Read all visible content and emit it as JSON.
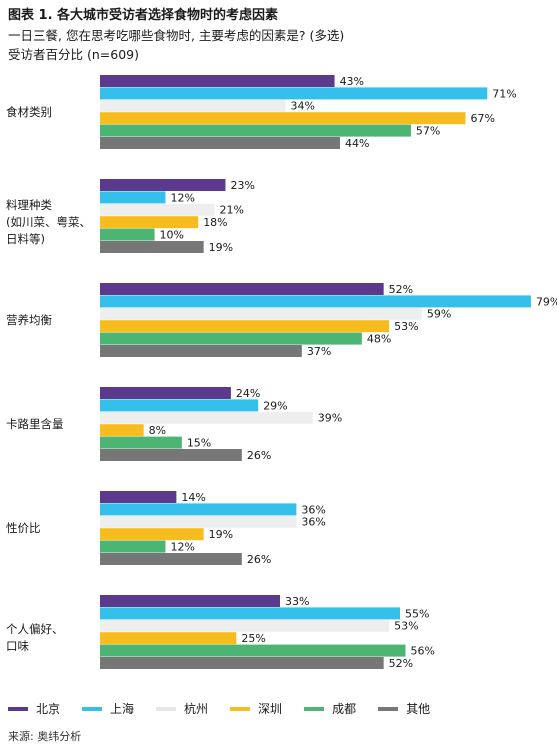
{
  "figure": {
    "title": "图表 1. 各大城市受访者选择食物时的考虑因素",
    "subtitle": "一日三餐, 您在思考吃哪些食物时, 主要考虑的因素是? (多选)",
    "subtitle2": "受访者百分比 (n=609)",
    "source": "来源: 奥纬分析"
  },
  "chart_data": {
    "type": "bar",
    "orientation": "horizontal",
    "categories": [
      "食材类别",
      "料理种类\n(如川菜、粤菜、\n日料等)",
      "营养均衡",
      "卡路里含量",
      "性价比",
      "个人偏好、\n口味"
    ],
    "series": [
      {
        "name": "北京",
        "color": "#5b3a8e",
        "values": [
          43,
          23,
          52,
          24,
          14,
          33
        ]
      },
      {
        "name": "上海",
        "color": "#35c0ec",
        "values": [
          71,
          12,
          79,
          29,
          36,
          55
        ]
      },
      {
        "name": "杭州",
        "color": "#eeeeee",
        "values": [
          34,
          21,
          59,
          39,
          36,
          53
        ]
      },
      {
        "name": "深圳",
        "color": "#f7bc1e",
        "values": [
          67,
          18,
          53,
          8,
          19,
          25
        ]
      },
      {
        "name": "成都",
        "color": "#4cb573",
        "values": [
          57,
          10,
          48,
          15,
          12,
          56
        ]
      },
      {
        "name": "其他",
        "color": "#777777",
        "values": [
          44,
          19,
          37,
          26,
          26,
          52
        ]
      }
    ],
    "value_suffix": "%",
    "xlim": [
      0,
      100
    ],
    "grid": false,
    "legend_position": "bottom"
  }
}
